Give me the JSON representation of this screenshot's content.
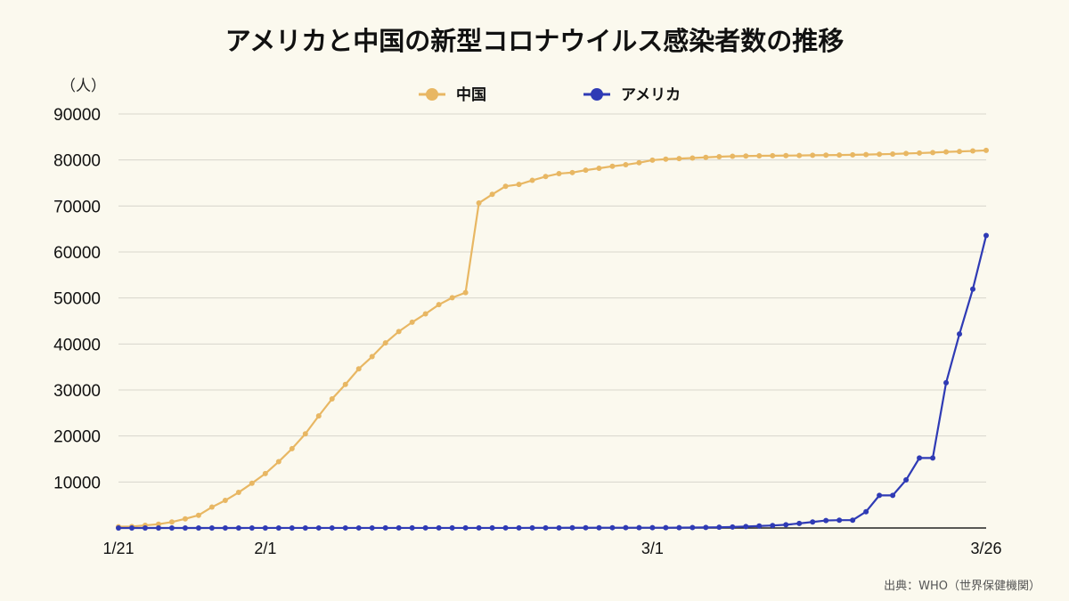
{
  "chart_data": {
    "type": "line",
    "title": "アメリカと中国の新型コロナウイルス感染者数の推移",
    "unit_label": "（人）",
    "source": "出典：WHO（世界保健機関）",
    "x_tick_labels": [
      "1/21",
      "2/1",
      "3/1",
      "3/26"
    ],
    "x_tick_days": [
      1,
      12,
      41,
      66
    ],
    "y_ticks": [
      10000,
      20000,
      30000,
      40000,
      50000,
      60000,
      70000,
      80000,
      90000
    ],
    "ylim": [
      0,
      90000
    ],
    "xlim_days": [
      1,
      66
    ],
    "grid": true,
    "legend_position": "top-center",
    "series": [
      {
        "name": "中国",
        "color": "#e8b763",
        "values": [
          278,
          310,
          571,
          830,
          1297,
          1985,
          2761,
          4537,
          5997,
          7736,
          9720,
          11821,
          14411,
          17238,
          20471,
          24363,
          28060,
          31211,
          34598,
          37251,
          40235,
          42708,
          44730,
          46550,
          48548,
          50054,
          51174,
          70635,
          72528,
          74280,
          74675,
          75569,
          76392,
          77042,
          77262,
          77780,
          78191,
          78630,
          78961,
          79394,
          79968,
          80174,
          80304,
          80422,
          80565,
          80711,
          80813,
          80859,
          80904,
          80924,
          80955,
          80981,
          81021,
          81048,
          81077,
          81116,
          81174,
          81236,
          81300,
          81416,
          81498,
          81601,
          81747,
          81846,
          81960,
          82078
        ]
      },
      {
        "name": "アメリカ",
        "color": "#2f3bb5",
        "values": [
          1,
          1,
          1,
          2,
          2,
          5,
          5,
          5,
          6,
          6,
          7,
          8,
          11,
          11,
          11,
          12,
          12,
          12,
          12,
          12,
          13,
          13,
          14,
          15,
          15,
          15,
          15,
          15,
          15,
          15,
          15,
          35,
          35,
          35,
          53,
          53,
          59,
          60,
          62,
          62,
          62,
          64,
          75,
          100,
          124,
          158,
          221,
          319,
          435,
          541,
          704,
          994,
          1301,
          1630,
          1701,
          1701,
          3536,
          7087,
          7087,
          10442,
          15219,
          15219,
          31573,
          42164,
          51914,
          63570
        ]
      }
    ]
  }
}
